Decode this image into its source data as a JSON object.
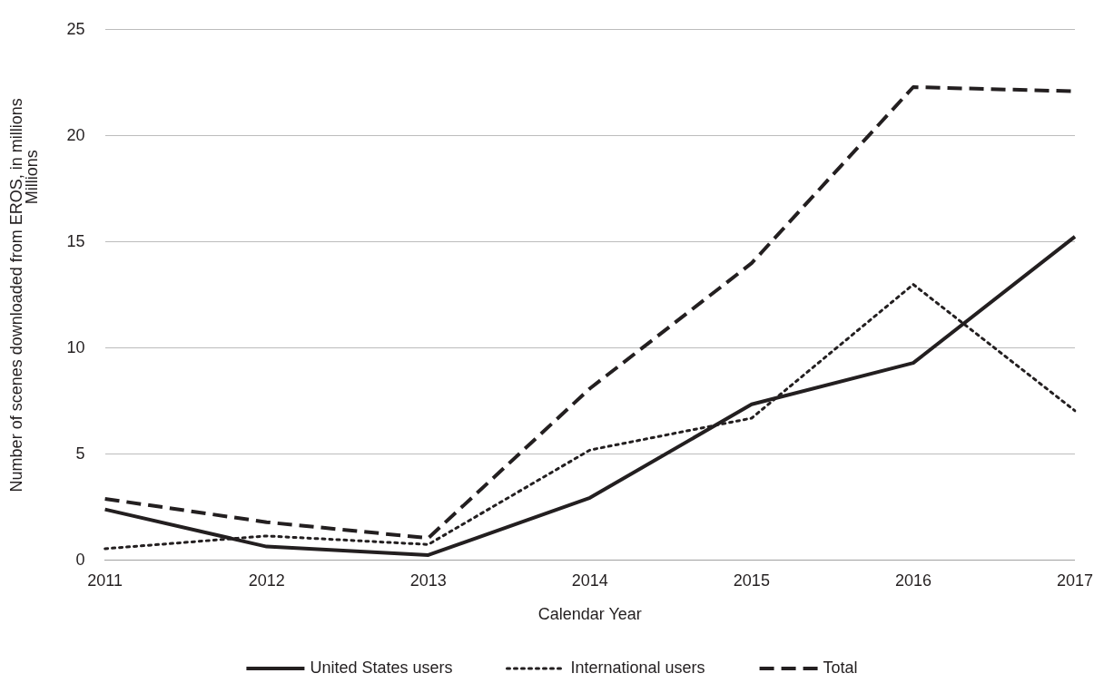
{
  "chart_data": {
    "type": "line",
    "xlabel": "Calendar Year",
    "ylabel": "Number of scenes downloaded from EROS, in millions",
    "annotations": [
      "Millions"
    ],
    "categories": [
      "2011",
      "2012",
      "2013",
      "2014",
      "2015",
      "2016",
      "2017"
    ],
    "series": [
      {
        "name": "United States users",
        "color": "#231f20",
        "line_style": "solid",
        "values": [
          2.4,
          0.65,
          0.25,
          2.95,
          7.35,
          9.3,
          15.25
        ]
      },
      {
        "name": "International users",
        "color": "#231f20",
        "line_style": "dotted",
        "values": [
          0.55,
          1.15,
          0.75,
          5.2,
          6.7,
          13.0,
          7.05
        ]
      },
      {
        "name": "Total",
        "color": "#231f20",
        "line_style": "dashed",
        "values": [
          2.9,
          1.8,
          1.05,
          8.1,
          14.0,
          22.3,
          22.1
        ]
      }
    ],
    "ylim": [
      0,
      25
    ],
    "yticks": [
      0,
      5,
      10,
      15,
      20,
      25
    ],
    "grid": "y",
    "legend": "bottom",
    "marker": "none"
  }
}
